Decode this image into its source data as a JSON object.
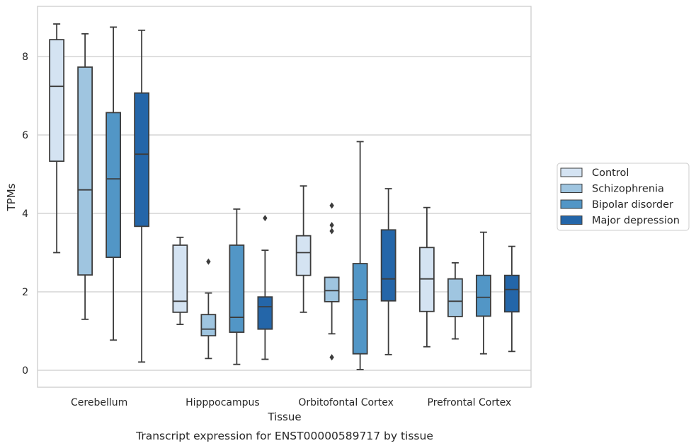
{
  "chart_data": {
    "type": "box",
    "title": "",
    "caption": "Transcript expression for ENST00000589717 by tissue",
    "xlabel": "Tissue",
    "ylabel": "TPMs",
    "ylim": [
      -0.4,
      9.3
    ],
    "yticks": [
      0,
      2,
      4,
      6,
      8
    ],
    "grid": true,
    "legend_position": "right",
    "categories": [
      "Cerebellum",
      "Hipppocampus",
      "Orbitofontal Cortex",
      "Prefrontal Cortex"
    ],
    "series": [
      {
        "name": "Control",
        "color": "#d4e3f2",
        "boxes": [
          {
            "min": 3.0,
            "q1": 5.33,
            "median": 7.24,
            "q3": 8.43,
            "max": 8.83,
            "outliers": []
          },
          {
            "min": 1.17,
            "q1": 1.48,
            "median": 1.76,
            "q3": 3.19,
            "max": 3.39,
            "outliers": []
          },
          {
            "min": 1.48,
            "q1": 2.42,
            "median": 3.0,
            "q3": 3.43,
            "max": 4.7,
            "outliers": []
          },
          {
            "min": 0.6,
            "q1": 1.5,
            "median": 2.33,
            "q3": 3.13,
            "max": 4.15,
            "outliers": []
          }
        ]
      },
      {
        "name": "Schizophrenia",
        "color": "#9fc5e0",
        "boxes": [
          {
            "min": 1.3,
            "q1": 2.43,
            "median": 4.6,
            "q3": 7.73,
            "max": 8.58,
            "outliers": []
          },
          {
            "min": 0.3,
            "q1": 0.88,
            "median": 1.05,
            "q3": 1.42,
            "max": 1.97,
            "outliers": [
              2.77
            ]
          },
          {
            "min": 0.93,
            "q1": 1.75,
            "median": 2.03,
            "q3": 2.37,
            "max": 2.37,
            "outliers": [
              4.2,
              3.7,
              3.55,
              0.33
            ]
          },
          {
            "min": 0.8,
            "q1": 1.37,
            "median": 1.76,
            "q3": 2.33,
            "max": 2.74,
            "outliers": []
          }
        ]
      },
      {
        "name": "Bipolar disorder",
        "color": "#5296c6",
        "boxes": [
          {
            "min": 0.77,
            "q1": 2.88,
            "median": 4.88,
            "q3": 6.57,
            "max": 8.75,
            "outliers": []
          },
          {
            "min": 0.15,
            "q1": 0.97,
            "median": 1.35,
            "q3": 3.19,
            "max": 4.11,
            "outliers": []
          },
          {
            "min": 0.02,
            "q1": 0.42,
            "median": 1.8,
            "q3": 2.72,
            "max": 5.83,
            "outliers": []
          },
          {
            "min": 0.42,
            "q1": 1.38,
            "median": 1.86,
            "q3": 2.42,
            "max": 3.52,
            "outliers": []
          }
        ]
      },
      {
        "name": "Major depression",
        "color": "#2466a9",
        "boxes": [
          {
            "min": 0.21,
            "q1": 3.67,
            "median": 5.51,
            "q3": 7.07,
            "max": 8.67,
            "outliers": []
          },
          {
            "min": 0.28,
            "q1": 1.05,
            "median": 1.62,
            "q3": 1.87,
            "max": 3.06,
            "outliers": [
              3.88
            ]
          },
          {
            "min": 0.4,
            "q1": 1.77,
            "median": 2.33,
            "q3": 3.58,
            "max": 4.63,
            "outliers": []
          },
          {
            "min": 0.48,
            "q1": 1.49,
            "median": 2.06,
            "q3": 2.42,
            "max": 3.16,
            "outliers": []
          }
        ]
      }
    ]
  }
}
